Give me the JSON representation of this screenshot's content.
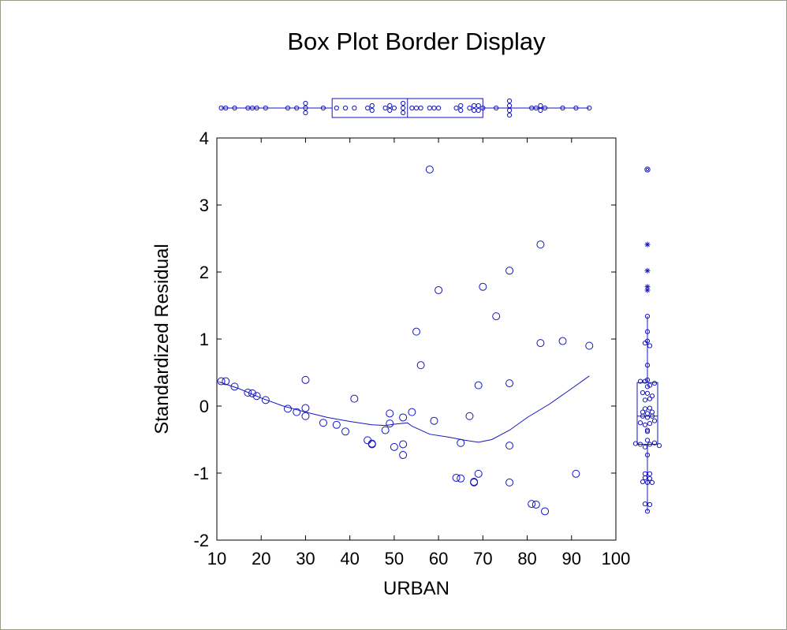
{
  "chart_data": {
    "type": "scatter",
    "title": "Box Plot Border Display",
    "xlabel": "URBAN",
    "ylabel": "Standardized Residual",
    "xlim": [
      10,
      100
    ],
    "ylim": [
      -2,
      4
    ],
    "x_ticks": [
      "10",
      "20",
      "30",
      "40",
      "50",
      "60",
      "70",
      "80",
      "90",
      "100"
    ],
    "y_ticks": [
      "-2",
      "-1",
      "0",
      "1",
      "2",
      "3",
      "4"
    ],
    "grid": false,
    "marker_color": "#1515c0",
    "points": [
      {
        "x": 11,
        "y": 0.37
      },
      {
        "x": 12,
        "y": 0.37
      },
      {
        "x": 14,
        "y": 0.29
      },
      {
        "x": 17,
        "y": 0.2
      },
      {
        "x": 18,
        "y": 0.19
      },
      {
        "x": 19,
        "y": 0.15
      },
      {
        "x": 21,
        "y": 0.09
      },
      {
        "x": 26,
        "y": -0.04
      },
      {
        "x": 28,
        "y": -0.09
      },
      {
        "x": 30,
        "y": -0.03
      },
      {
        "x": 30,
        "y": -0.15
      },
      {
        "x": 30,
        "y": 0.39
      },
      {
        "x": 34,
        "y": -0.25
      },
      {
        "x": 37,
        "y": -0.28
      },
      {
        "x": 39,
        "y": -0.38
      },
      {
        "x": 41,
        "y": 0.11
      },
      {
        "x": 44,
        "y": -0.51
      },
      {
        "x": 45,
        "y": -0.56
      },
      {
        "x": 45,
        "y": -0.57
      },
      {
        "x": 48,
        "y": -0.36
      },
      {
        "x": 49,
        "y": -0.26
      },
      {
        "x": 49,
        "y": -0.11
      },
      {
        "x": 50,
        "y": -0.61
      },
      {
        "x": 52,
        "y": -0.57
      },
      {
        "x": 52,
        "y": -0.73
      },
      {
        "x": 52,
        "y": -0.17
      },
      {
        "x": 54,
        "y": -0.09
      },
      {
        "x": 55,
        "y": 1.11
      },
      {
        "x": 56,
        "y": 0.61
      },
      {
        "x": 58,
        "y": 3.53
      },
      {
        "x": 59,
        "y": -0.22
      },
      {
        "x": 60,
        "y": 1.73
      },
      {
        "x": 64,
        "y": -1.07
      },
      {
        "x": 65,
        "y": -1.08
      },
      {
        "x": 65,
        "y": -0.55
      },
      {
        "x": 67,
        "y": -0.15
      },
      {
        "x": 68,
        "y": -1.13
      },
      {
        "x": 68,
        "y": -1.14
      },
      {
        "x": 69,
        "y": -1.01
      },
      {
        "x": 69,
        "y": 0.31
      },
      {
        "x": 70,
        "y": 1.78
      },
      {
        "x": 73,
        "y": 1.34
      },
      {
        "x": 76,
        "y": 2.02
      },
      {
        "x": 76,
        "y": 0.34
      },
      {
        "x": 76,
        "y": -0.59
      },
      {
        "x": 76,
        "y": -1.14
      },
      {
        "x": 81,
        "y": -1.46
      },
      {
        "x": 82,
        "y": -1.47
      },
      {
        "x": 83,
        "y": 2.41
      },
      {
        "x": 83,
        "y": 0.94
      },
      {
        "x": 84,
        "y": -1.57
      },
      {
        "x": 88,
        "y": 0.97
      },
      {
        "x": 91,
        "y": -1.01
      },
      {
        "x": 94,
        "y": 0.9
      }
    ],
    "smooth_curve": [
      [
        10.5,
        0.36
      ],
      [
        15,
        0.26
      ],
      [
        20,
        0.12
      ],
      [
        25,
        0.0
      ],
      [
        30,
        -0.09
      ],
      [
        35,
        -0.17
      ],
      [
        40,
        -0.23
      ],
      [
        45,
        -0.28
      ],
      [
        48,
        -0.29
      ],
      [
        50,
        -0.27
      ],
      [
        53,
        -0.25
      ],
      [
        54,
        -0.3
      ],
      [
        58,
        -0.42
      ],
      [
        62,
        -0.46
      ],
      [
        66,
        -0.51
      ],
      [
        69,
        -0.54
      ],
      [
        72,
        -0.5
      ],
      [
        76,
        -0.36
      ],
      [
        80,
        -0.17
      ],
      [
        85,
        0.03
      ],
      [
        90,
        0.26
      ],
      [
        94,
        0.45
      ]
    ],
    "x_boxplot": {
      "q1": 36,
      "median": 53,
      "q3": 70,
      "whisker_low": 11,
      "whisker_high": 94
    },
    "y_boxplot": {
      "q1": -0.57,
      "median": -0.15,
      "q3": 0.35,
      "whisker_low": -1.57,
      "whisker_high": 1.34
    },
    "y_boxplot_outliers": [
      {
        "y": 1.73,
        "marker": "star"
      },
      {
        "y": 1.78,
        "marker": "star"
      },
      {
        "y": 2.02,
        "marker": "star"
      },
      {
        "y": 2.41,
        "marker": "star"
      },
      {
        "y": 3.53,
        "marker": "circle"
      }
    ]
  }
}
